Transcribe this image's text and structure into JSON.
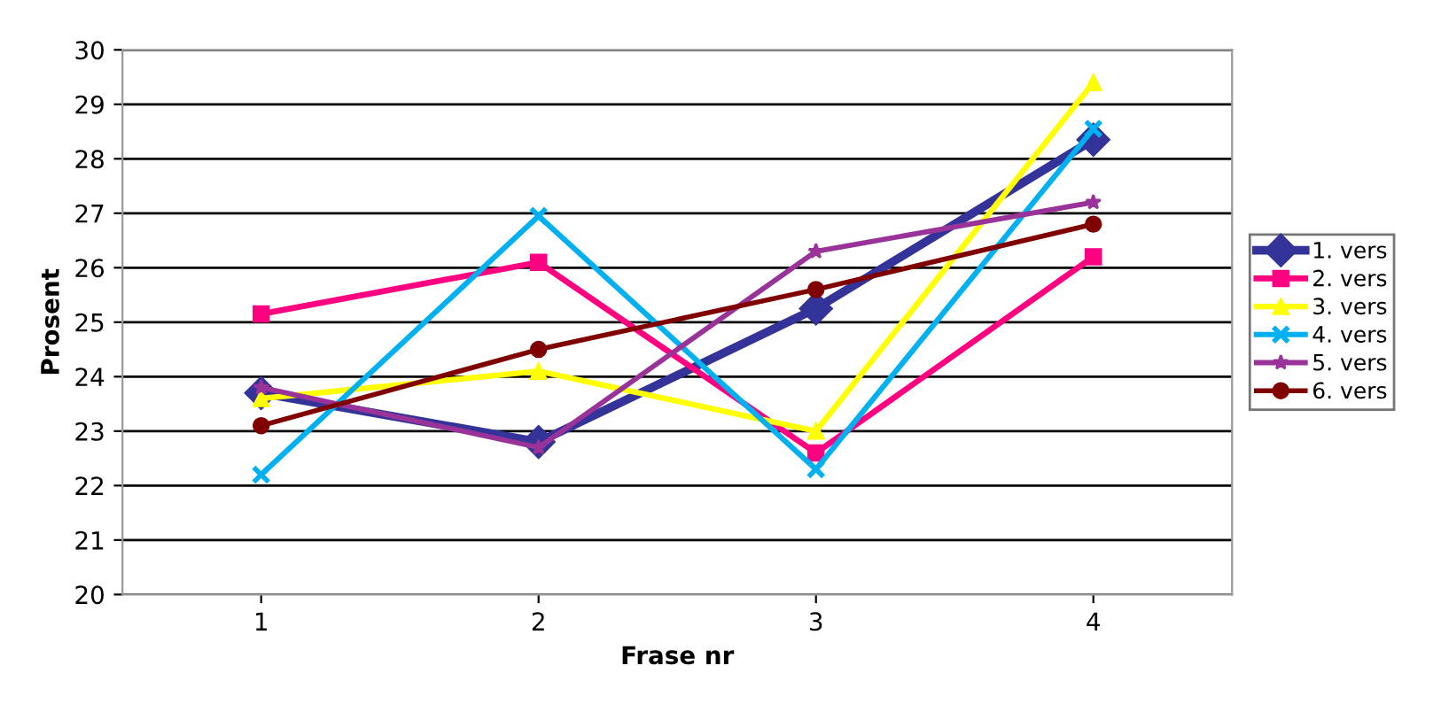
{
  "chart_data": {
    "type": "line",
    "xlabel": "Frase nr",
    "ylabel": "Prosent",
    "categories": [
      "1",
      "2",
      "3",
      "4"
    ],
    "series": [
      {
        "name": "1. vers",
        "color": "#333399",
        "marker": "diamond",
        "values": [
          23.7,
          22.8,
          25.25,
          28.35
        ]
      },
      {
        "name": "2. vers",
        "color": "#ff0080",
        "marker": "square",
        "values": [
          25.15,
          26.1,
          22.6,
          26.2
        ]
      },
      {
        "name": "3. vers",
        "color": "#ffff00",
        "marker": "triangle",
        "values": [
          23.6,
          24.1,
          23.0,
          29.4
        ]
      },
      {
        "name": "4. vers",
        "color": "#00b0f0",
        "marker": "cross",
        "values": [
          22.2,
          26.95,
          22.3,
          28.55
        ]
      },
      {
        "name": "5. vers",
        "color": "#993399",
        "marker": "star",
        "values": [
          23.8,
          22.7,
          26.3,
          27.2
        ]
      },
      {
        "name": "6. vers",
        "color": "#800000",
        "marker": "circle",
        "values": [
          23.1,
          24.5,
          25.6,
          26.8
        ]
      }
    ],
    "ylim": [
      20,
      30
    ],
    "yticks": [
      20,
      21,
      22,
      23,
      24,
      25,
      26,
      27,
      28,
      29,
      30
    ],
    "grid": "y",
    "legend": "right",
    "line_style": "solid"
  }
}
